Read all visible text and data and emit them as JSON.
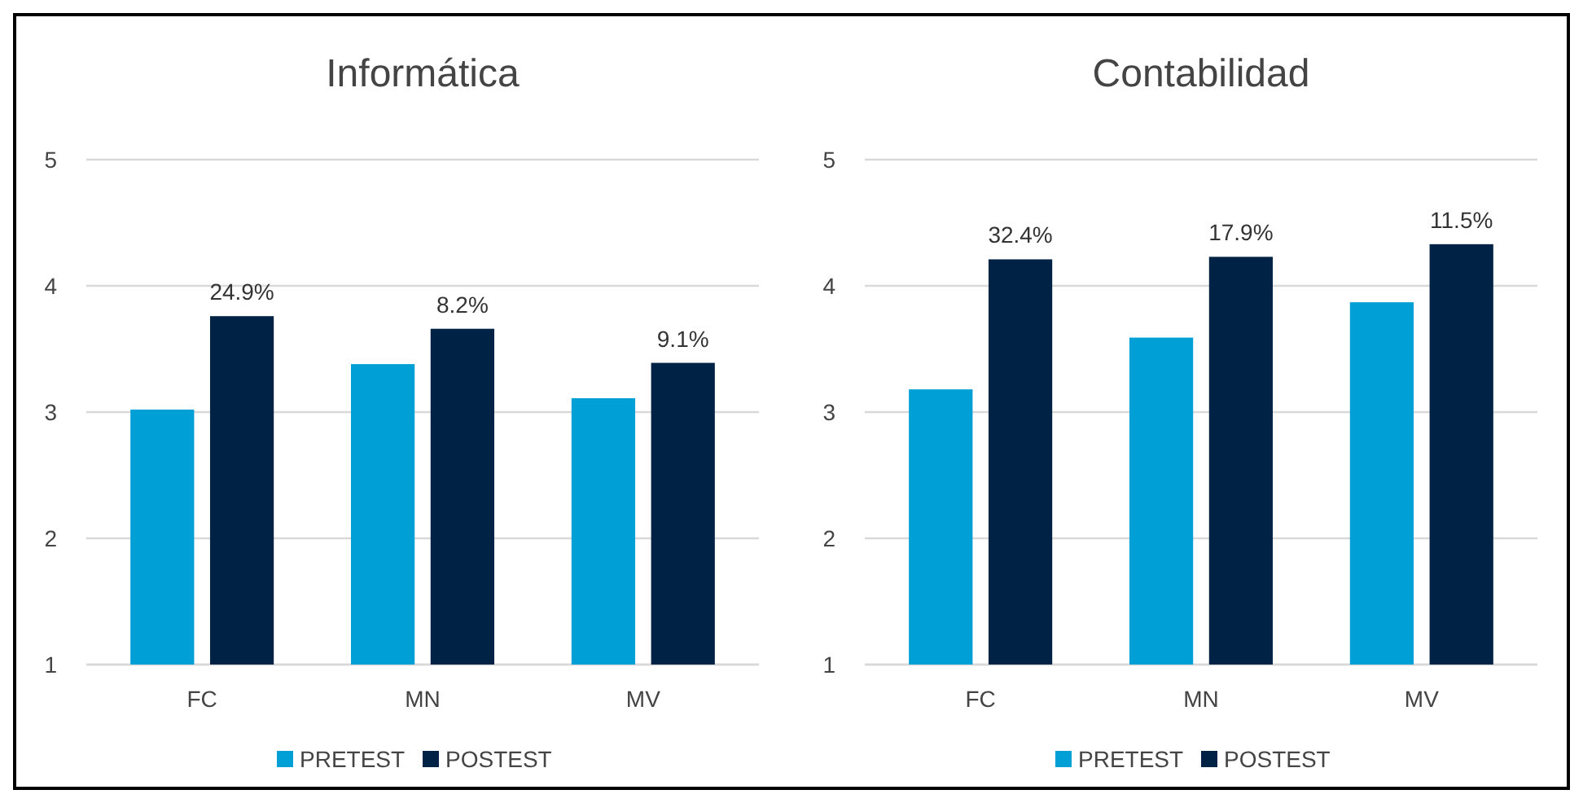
{
  "chart_data": [
    {
      "type": "bar",
      "title": "Informática",
      "categories": [
        "FC",
        "MN",
        "MV"
      ],
      "series": [
        {
          "name": "PRETEST",
          "color": "#009fd6",
          "values": [
            3.02,
            3.38,
            3.11
          ]
        },
        {
          "name": "POSTEST",
          "color": "#002244",
          "values": [
            3.76,
            3.66,
            3.39
          ]
        }
      ],
      "ylim": [
        1,
        5
      ],
      "yticks": [
        1,
        2,
        3,
        4,
        5
      ],
      "grid": "y",
      "legend": "bottom",
      "annotations": [
        {
          "text": "24.9%",
          "x": "FC",
          "y": 3.76
        },
        {
          "text": "8.2%",
          "x": "MN",
          "y": 3.66
        },
        {
          "text": "9.1%",
          "x": "MV",
          "y": 3.39
        }
      ]
    },
    {
      "type": "bar",
      "title": "Contabilidad",
      "categories": [
        "FC",
        "MN",
        "MV"
      ],
      "series": [
        {
          "name": "PRETEST",
          "color": "#009fd6",
          "values": [
            3.18,
            3.59,
            3.87
          ]
        },
        {
          "name": "POSTEST",
          "color": "#002244",
          "values": [
            4.21,
            4.23,
            4.33
          ]
        }
      ],
      "ylim": [
        1,
        5
      ],
      "yticks": [
        1,
        2,
        3,
        4,
        5
      ],
      "grid": "y",
      "legend": "bottom",
      "annotations": [
        {
          "text": "32.4%",
          "x": "FC",
          "y": 4.21
        },
        {
          "text": "17.9%",
          "x": "MN",
          "y": 4.23
        },
        {
          "text": "11.5%",
          "x": "MV",
          "y": 4.33
        }
      ]
    }
  ]
}
